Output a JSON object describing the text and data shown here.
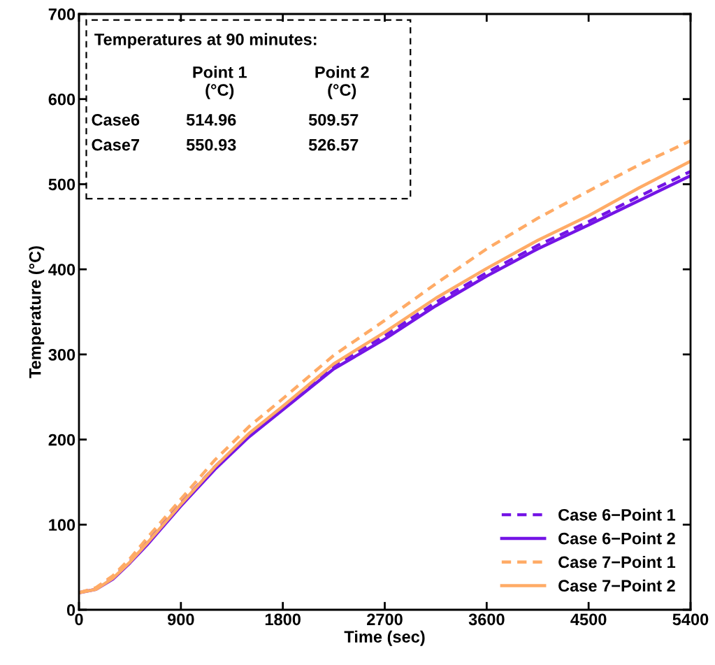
{
  "chart_data": {
    "type": "line",
    "xlabel": "Time (sec)",
    "ylabel": "Temperature (°C)",
    "x": [
      0,
      150,
      300,
      450,
      600,
      900,
      1200,
      1500,
      1800,
      2250,
      2700,
      3150,
      3600,
      4050,
      4500,
      4950,
      5400
    ],
    "series": [
      {
        "name": "Case 6−Point 1",
        "color": "#7414e6",
        "line_style": "dashed",
        "values": [
          20,
          25,
          38,
          57,
          79,
          125,
          168,
          206,
          238,
          287,
          322,
          361,
          396,
          428,
          456,
          486,
          515
        ]
      },
      {
        "name": "Case 6−Point 2",
        "color": "#7414e6",
        "line_style": "solid",
        "values": [
          20,
          24,
          36,
          55,
          76,
          122,
          165,
          203,
          235,
          283,
          318,
          357,
          392,
          424,
          452,
          481,
          510
        ]
      },
      {
        "name": "Case 7−Point 1",
        "color": "#ffab66",
        "line_style": "dashed",
        "values": [
          20,
          26,
          40,
          60,
          84,
          130,
          176,
          215,
          248,
          299,
          340,
          383,
          424,
          460,
          492,
          523,
          551
        ]
      },
      {
        "name": "Case 7−Point 2",
        "color": "#ffab66",
        "line_style": "solid",
        "values": [
          20,
          24,
          37,
          56,
          78,
          124,
          168,
          207,
          239,
          289,
          326,
          366,
          401,
          434,
          463,
          496,
          527
        ]
      }
    ],
    "xlim": [
      0,
      5400
    ],
    "xticks": [
      0,
      900,
      1800,
      2700,
      3600,
      4500,
      5400
    ],
    "ylim": [
      0,
      700
    ],
    "yticks": [
      0,
      100,
      200,
      300,
      400,
      500,
      600,
      700
    ],
    "grid": false,
    "legend": "bottom right",
    "marker": "none",
    "annotations": [
      "Temperatures at 90 minutes:",
      "Point 1\n(°C)",
      "Point 2\n(°C)",
      "Case6",
      "514.96",
      "509.57",
      "Case7",
      "550.93",
      "526.57"
    ]
  }
}
